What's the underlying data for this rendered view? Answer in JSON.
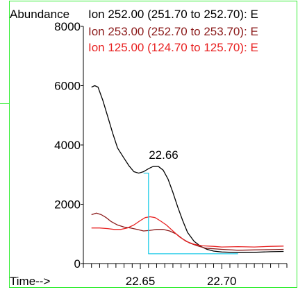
{
  "chart_data": {
    "type": "line",
    "ylabel": "Abundance",
    "xlabel": "Time-->",
    "xlim": [
      22.615,
      22.74
    ],
    "ylim": [
      0,
      8000
    ],
    "x_ticks": [
      "22.65",
      "22.70"
    ],
    "x_tick_values": [
      22.65,
      22.7
    ],
    "y_ticks": [
      "0",
      "2000",
      "4000",
      "6000",
      "8000"
    ],
    "y_tick_values": [
      0,
      2000,
      4000,
      6000,
      8000
    ],
    "legend_position": "top",
    "peak_annotation": {
      "label": "22.66",
      "x": 22.66,
      "y": 3300
    },
    "series": [
      {
        "name": "Ion 252.00 (251.70 to 252.70): E",
        "color": "#000000",
        "points": [
          [
            22.62,
            5950
          ],
          [
            22.622,
            6000
          ],
          [
            22.624,
            5950
          ],
          [
            22.627,
            5500
          ],
          [
            22.63,
            4950
          ],
          [
            22.633,
            4400
          ],
          [
            22.636,
            3900
          ],
          [
            22.64,
            3550
          ],
          [
            22.643,
            3300
          ],
          [
            22.646,
            3100
          ],
          [
            22.649,
            3050
          ],
          [
            22.652,
            3100
          ],
          [
            22.655,
            3200
          ],
          [
            22.658,
            3280
          ],
          [
            22.661,
            3280
          ],
          [
            22.664,
            3150
          ],
          [
            22.667,
            2850
          ],
          [
            22.67,
            2400
          ],
          [
            22.673,
            1900
          ],
          [
            22.676,
            1450
          ],
          [
            22.679,
            1050
          ],
          [
            22.683,
            750
          ],
          [
            22.687,
            580
          ],
          [
            22.691,
            480
          ],
          [
            22.695,
            420
          ],
          [
            22.7,
            390
          ],
          [
            22.71,
            370
          ],
          [
            22.72,
            380
          ],
          [
            22.73,
            400
          ],
          [
            22.738,
            410
          ]
        ]
      },
      {
        "name": "Ion 253.00 (252.70 to 253.70): E",
        "color": "#8B1A1A",
        "points": [
          [
            22.62,
            1650
          ],
          [
            22.623,
            1700
          ],
          [
            22.626,
            1650
          ],
          [
            22.629,
            1550
          ],
          [
            22.632,
            1420
          ],
          [
            22.636,
            1300
          ],
          [
            22.64,
            1230
          ],
          [
            22.644,
            1200
          ],
          [
            22.648,
            1150
          ],
          [
            22.652,
            1100
          ],
          [
            22.656,
            1120
          ],
          [
            22.66,
            1150
          ],
          [
            22.664,
            1150
          ],
          [
            22.668,
            1100
          ],
          [
            22.672,
            1000
          ],
          [
            22.676,
            830
          ],
          [
            22.68,
            700
          ],
          [
            22.685,
            600
          ],
          [
            22.69,
            520
          ],
          [
            22.7,
            480
          ],
          [
            22.71,
            450
          ],
          [
            22.72,
            460
          ],
          [
            22.73,
            470
          ],
          [
            22.738,
            480
          ]
        ]
      },
      {
        "name": "Ion 125.00 (124.70 to 125.70): E",
        "color": "#E82020",
        "points": [
          [
            22.62,
            1200
          ],
          [
            22.625,
            1200
          ],
          [
            22.63,
            1180
          ],
          [
            22.634,
            1150
          ],
          [
            22.638,
            1150
          ],
          [
            22.642,
            1200
          ],
          [
            22.646,
            1300
          ],
          [
            22.65,
            1450
          ],
          [
            22.653,
            1550
          ],
          [
            22.656,
            1580
          ],
          [
            22.659,
            1550
          ],
          [
            22.662,
            1450
          ],
          [
            22.666,
            1300
          ],
          [
            22.67,
            1100
          ],
          [
            22.674,
            900
          ],
          [
            22.678,
            750
          ],
          [
            22.683,
            650
          ],
          [
            22.688,
            600
          ],
          [
            22.695,
            580
          ],
          [
            22.7,
            560
          ],
          [
            22.71,
            570
          ],
          [
            22.72,
            560
          ],
          [
            22.73,
            580
          ],
          [
            22.738,
            590
          ]
        ]
      },
      {
        "name": "",
        "color": "#22CCE8",
        "points": [
          [
            22.652,
            3050
          ],
          [
            22.655,
            3050
          ],
          [
            22.655,
            330
          ],
          [
            22.71,
            330
          ]
        ]
      }
    ]
  }
}
